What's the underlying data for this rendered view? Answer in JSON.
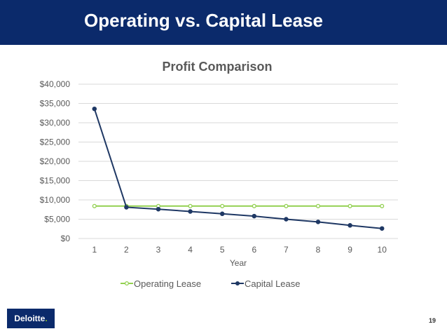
{
  "slide": {
    "title": "Operating vs. Capital Lease",
    "page_number": "19",
    "logo": {
      "text": "Deloitte",
      "dot": "."
    }
  },
  "colors": {
    "header_bg": "#0b2a6b",
    "operating": "#92d050",
    "capital": "#1f3864",
    "grid": "#d9d9d9"
  },
  "chart_data": {
    "type": "line",
    "title": "Profit Comparison",
    "xlabel": "Year",
    "ylabel": "",
    "x": [
      1,
      2,
      3,
      4,
      5,
      6,
      7,
      8,
      9,
      10
    ],
    "ylim": [
      0,
      40000
    ],
    "yticks": [
      0,
      5000,
      10000,
      15000,
      20000,
      25000,
      30000,
      35000,
      40000
    ],
    "ytick_labels": [
      "$0",
      "$5,000",
      "$10,000",
      "$15,000",
      "$20,000",
      "$25,000",
      "$30,000",
      "$35,000",
      "$40,000"
    ],
    "grid": true,
    "legend_position": "bottom",
    "series": [
      {
        "name": "Operating Lease",
        "color": "#92d050",
        "marker": "circle-open",
        "values": [
          8400,
          8400,
          8400,
          8400,
          8400,
          8400,
          8400,
          8400,
          8400,
          8400
        ]
      },
      {
        "name": "Capital Lease",
        "color": "#1f3864",
        "marker": "circle-filled",
        "values": [
          33600,
          8100,
          7600,
          7000,
          6400,
          5800,
          5000,
          4300,
          3400,
          2600
        ]
      }
    ]
  }
}
